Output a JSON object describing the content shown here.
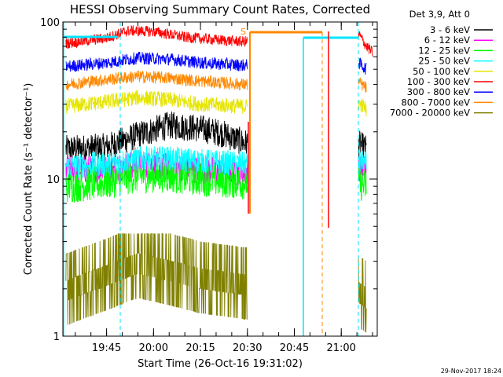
{
  "chart_data": {
    "type": "line",
    "title": "HESSI Observing Summary Count Rates, Corrected",
    "xlabel": "Start Time (26-Oct-16 19:31:02)",
    "ylabel": "Corrected Count Rate (s⁻¹ detector⁻¹)",
    "yscale": "log",
    "ylim": [
      1,
      100
    ],
    "xlim": [
      "19:31:02",
      "21:11:30"
    ],
    "x_ticks": [
      "19:45",
      "20:00",
      "20:15",
      "20:30",
      "20:45",
      "21:00"
    ],
    "y_ticks": [
      "1",
      "10",
      "100"
    ],
    "legend_header": "Det 3,9, Att 0",
    "legend_position": "right, outside plot",
    "timestamp": "29-Nov-2017 18:24",
    "marker_label": "S",
    "data_gap": [
      "20:30:00",
      "21:05:30"
    ],
    "series": [
      {
        "name": "3 - 6 keV",
        "color": "#000000",
        "values": [
          {
            "t": "19:32",
            "y": 15.5
          },
          {
            "t": "19:45",
            "y": 16
          },
          {
            "t": "19:55",
            "y": 19
          },
          {
            "t": "20:05",
            "y": 22
          },
          {
            "t": "20:15",
            "y": 21
          },
          {
            "t": "20:22",
            "y": 19.5
          },
          {
            "t": "20:29",
            "y": 17
          },
          {
            "t": "21:05",
            "y": 17
          },
          {
            "t": "21:08",
            "y": 15.5
          }
        ]
      },
      {
        "name": "6 - 12 keV",
        "color": "#ff00ff",
        "values": [
          {
            "t": "19:32",
            "y": 11.5
          },
          {
            "t": "19:45",
            "y": 11.5
          },
          {
            "t": "19:55",
            "y": 12.5
          },
          {
            "t": "20:05",
            "y": 12
          },
          {
            "t": "20:15",
            "y": 11.5
          },
          {
            "t": "20:29",
            "y": 11
          },
          {
            "t": "21:05",
            "y": 12
          },
          {
            "t": "21:08",
            "y": 11.5
          }
        ]
      },
      {
        "name": "12 - 25 keV",
        "color": "#00ff00",
        "values": [
          {
            "t": "19:32",
            "y": 9
          },
          {
            "t": "19:45",
            "y": 9.5
          },
          {
            "t": "19:55",
            "y": 10.5
          },
          {
            "t": "20:05",
            "y": 10.5
          },
          {
            "t": "20:15",
            "y": 10
          },
          {
            "t": "20:29",
            "y": 9.5
          },
          {
            "t": "21:05",
            "y": 9.5
          },
          {
            "t": "21:08",
            "y": 9
          }
        ]
      },
      {
        "name": "25 - 50 keV",
        "color": "#00ffff",
        "values": [
          {
            "t": "19:32",
            "y": 12
          },
          {
            "t": "19:45",
            "y": 12.5
          },
          {
            "t": "19:55",
            "y": 13.5
          },
          {
            "t": "20:05",
            "y": 13.5
          },
          {
            "t": "20:15",
            "y": 13
          },
          {
            "t": "20:29",
            "y": 12.5
          },
          {
            "t": "21:05",
            "y": 13
          },
          {
            "t": "21:08",
            "y": 12.5
          }
        ]
      },
      {
        "name": "50 - 100 keV",
        "color": "#e5e500",
        "values": [
          {
            "t": "19:32",
            "y": 29
          },
          {
            "t": "19:45",
            "y": 31
          },
          {
            "t": "19:55",
            "y": 33
          },
          {
            "t": "20:05",
            "y": 32
          },
          {
            "t": "20:15",
            "y": 30
          },
          {
            "t": "20:29",
            "y": 29
          },
          {
            "t": "21:05",
            "y": 31
          },
          {
            "t": "21:08",
            "y": 28
          }
        ]
      },
      {
        "name": "100 - 300 keV",
        "color": "#ff0000",
        "values": [
          {
            "t": "19:32",
            "y": 73
          },
          {
            "t": "19:45",
            "y": 79
          },
          {
            "t": "19:52",
            "y": 88
          },
          {
            "t": "20:00",
            "y": 87
          },
          {
            "t": "20:10",
            "y": 80
          },
          {
            "t": "20:20",
            "y": 77
          },
          {
            "t": "20:29",
            "y": 75
          },
          {
            "t": "21:05",
            "y": 87
          },
          {
            "t": "21:08",
            "y": 70
          },
          {
            "t": "21:10",
            "y": 64
          }
        ]
      },
      {
        "name": "300 - 800 keV",
        "color": "#0000ff",
        "values": [
          {
            "t": "19:32",
            "y": 52
          },
          {
            "t": "19:45",
            "y": 55
          },
          {
            "t": "19:55",
            "y": 59
          },
          {
            "t": "20:05",
            "y": 58
          },
          {
            "t": "20:15",
            "y": 55
          },
          {
            "t": "20:29",
            "y": 53
          },
          {
            "t": "21:05",
            "y": 56
          },
          {
            "t": "21:08",
            "y": 50
          }
        ]
      },
      {
        "name": "800 - 7000 keV",
        "color": "#ff8800",
        "values": [
          {
            "t": "19:32",
            "y": 40
          },
          {
            "t": "19:45",
            "y": 43
          },
          {
            "t": "19:55",
            "y": 45
          },
          {
            "t": "20:05",
            "y": 44
          },
          {
            "t": "20:15",
            "y": 42
          },
          {
            "t": "20:29",
            "y": 40
          },
          {
            "t": "21:05",
            "y": 42
          },
          {
            "t": "21:08",
            "y": 38
          }
        ]
      },
      {
        "name": "7000 - 20000 keV",
        "color": "#808000",
        "values": [
          {
            "t": "19:32",
            "y": 2
          },
          {
            "t": "19:45",
            "y": 2.5
          },
          {
            "t": "19:55",
            "y": 3
          },
          {
            "t": "20:05",
            "y": 2.7
          },
          {
            "t": "20:15",
            "y": 2.4
          },
          {
            "t": "20:29",
            "y": 2.2
          },
          {
            "t": "21:05",
            "y": 2
          },
          {
            "t": "21:08",
            "y": 1.8
          }
        ]
      }
    ]
  }
}
